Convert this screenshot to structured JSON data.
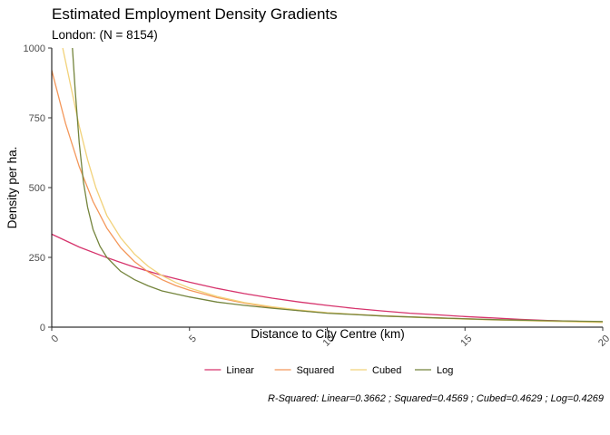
{
  "chart_data": {
    "type": "line",
    "title": "Estimated Employment Density Gradients",
    "subtitle": "London: (N = 8154)",
    "xlabel": "Distance to City Centre (km)",
    "ylabel": "Density per ha.",
    "xlim": [
      0,
      20
    ],
    "ylim": [
      0,
      1000
    ],
    "xticks": [
      0,
      5,
      10,
      15,
      20
    ],
    "yticks": [
      0,
      250,
      500,
      750,
      1000
    ],
    "grid": false,
    "legend_position": "bottom",
    "caption": "R-Squared: Linear=0.3662 ; Squared=0.4569 ; Cubed=0.4629 ; Log=0.4269",
    "series": [
      {
        "name": "Linear",
        "color": "#d6336c",
        "x": [
          0,
          1,
          2,
          3,
          4,
          5,
          6,
          7,
          8,
          9,
          10,
          11,
          12,
          13,
          14,
          15,
          16,
          17,
          18,
          19,
          20
        ],
        "y": [
          333,
          287,
          249,
          215,
          186,
          161,
          139,
          120,
          104,
          90,
          78,
          67,
          58,
          50,
          44,
          38,
          33,
          28,
          24,
          21,
          18
        ]
      },
      {
        "name": "Squared",
        "color": "#f4975a",
        "x": [
          0,
          0.5,
          1,
          1.5,
          2,
          2.5,
          3,
          3.5,
          4,
          4.5,
          5,
          6,
          7,
          8,
          9,
          10,
          12,
          14,
          16,
          18,
          20
        ],
        "y": [
          920,
          730,
          575,
          450,
          355,
          285,
          235,
          198,
          170,
          149,
          132,
          106,
          86,
          70,
          59,
          51,
          41,
          33,
          27,
          22,
          18
        ]
      },
      {
        "name": "Cubed",
        "color": "#f2d27a",
        "x": [
          0.4,
          0.7,
          1,
          1.3,
          1.6,
          2,
          2.5,
          3,
          3.5,
          4,
          4.5,
          5,
          6,
          7,
          8,
          9,
          10,
          12,
          14,
          16,
          18,
          20
        ],
        "y": [
          1000,
          860,
          720,
          600,
          500,
          400,
          320,
          262,
          218,
          185,
          160,
          140,
          110,
          88,
          73,
          61,
          52,
          40,
          32,
          26,
          21,
          17
        ]
      },
      {
        "name": "Log",
        "color": "#74843c",
        "x": [
          0.75,
          0.85,
          1,
          1.15,
          1.3,
          1.5,
          1.75,
          2,
          2.5,
          3,
          3.5,
          4,
          5,
          6,
          7,
          8,
          10,
          12,
          14,
          16,
          18,
          20
        ],
        "y": [
          1000,
          850,
          660,
          520,
          430,
          350,
          290,
          250,
          200,
          170,
          148,
          130,
          108,
          90,
          78,
          68,
          50,
          40,
          33,
          27,
          23,
          20
        ]
      }
    ]
  }
}
